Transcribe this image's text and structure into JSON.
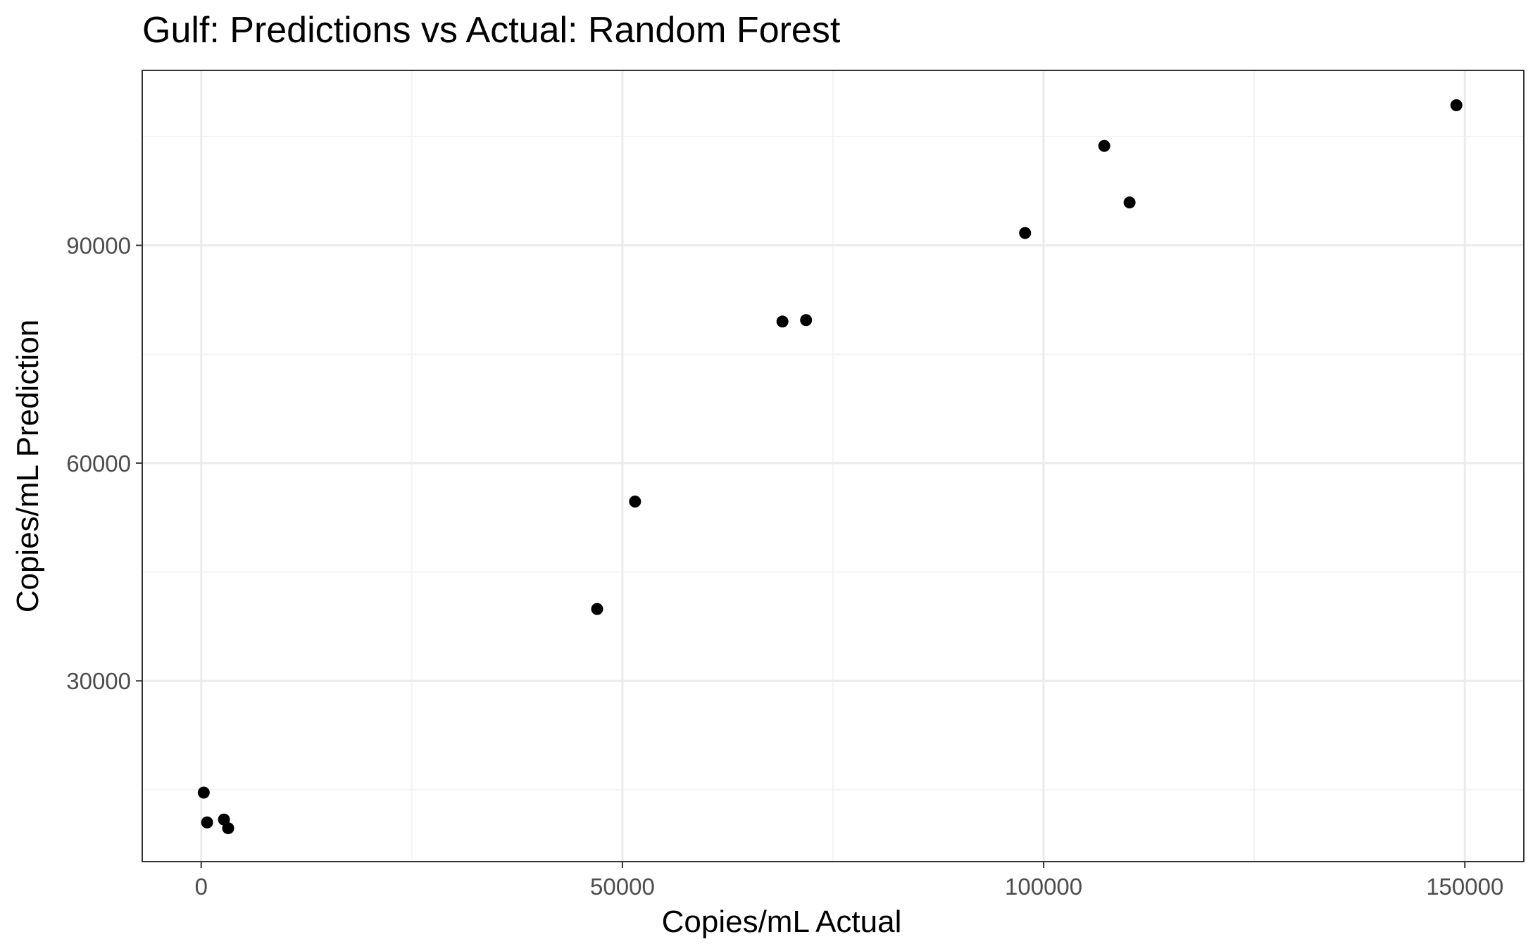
{
  "chart_data": {
    "type": "scatter",
    "title": "Gulf: Predictions vs Actual: Random Forest",
    "xlabel": "Copies/mL Actual",
    "ylabel": "Copies/mL Prediction",
    "xlim": [
      -7000,
      157000
    ],
    "ylim": [
      5100,
      114100
    ],
    "x_ticks": [
      0,
      50000,
      100000,
      150000
    ],
    "x_tick_labels": [
      "0",
      "50000",
      "100000",
      "150000"
    ],
    "y_ticks": [
      30000,
      60000,
      90000
    ],
    "y_tick_labels": [
      "30000",
      "60000",
      "90000"
    ],
    "x_minor_ticks": [
      25000,
      75000,
      125000
    ],
    "y_minor_ticks": [
      15000,
      45000,
      75000,
      105000
    ],
    "grid": true,
    "marker_color": "#000000",
    "series": [
      {
        "points": [
          {
            "x": 300,
            "y": 14600
          },
          {
            "x": 700,
            "y": 10500
          },
          {
            "x": 2700,
            "y": 10900
          },
          {
            "x": 3200,
            "y": 9700
          },
          {
            "x": 47000,
            "y": 39900
          },
          {
            "x": 51500,
            "y": 54700
          },
          {
            "x": 69000,
            "y": 79500
          },
          {
            "x": 71800,
            "y": 79700
          },
          {
            "x": 97800,
            "y": 91700
          },
          {
            "x": 107200,
            "y": 103700
          },
          {
            "x": 110200,
            "y": 95900
          },
          {
            "x": 149000,
            "y": 109300
          }
        ]
      }
    ]
  }
}
